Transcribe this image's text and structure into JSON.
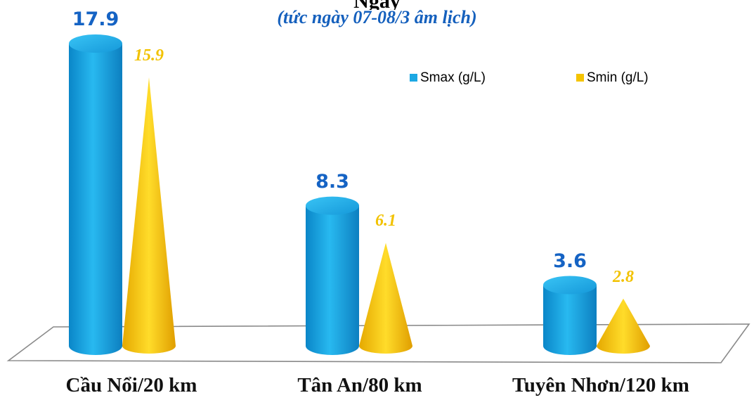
{
  "chart_data": {
    "type": "bar",
    "title": "Ngày",
    "subtitle": "(tức ngày 07-08/3 âm lịch)",
    "categories": [
      "Cầu Nổi/20 km",
      "Tân An/80 km",
      "Tuyên Nhơn/120 km"
    ],
    "series": [
      {
        "name": "Smax (g/L)",
        "values": [
          17.9,
          8.3,
          3.6
        ],
        "color": "#1ca8e3",
        "shape": "cylinder"
      },
      {
        "name": "Smin (g/L)",
        "values": [
          15.9,
          6.1,
          2.8
        ],
        "color": "#f5c400",
        "shape": "cone"
      }
    ],
    "ylim": [
      0,
      17.9
    ],
    "grid": false,
    "legend_position": "top-right",
    "value_labels": {
      "Smax (g/L)": [
        "17.9",
        "8.3",
        "3.6"
      ],
      "Smin (g/L)": [
        "15.9",
        "6.1",
        "2.8"
      ]
    }
  }
}
